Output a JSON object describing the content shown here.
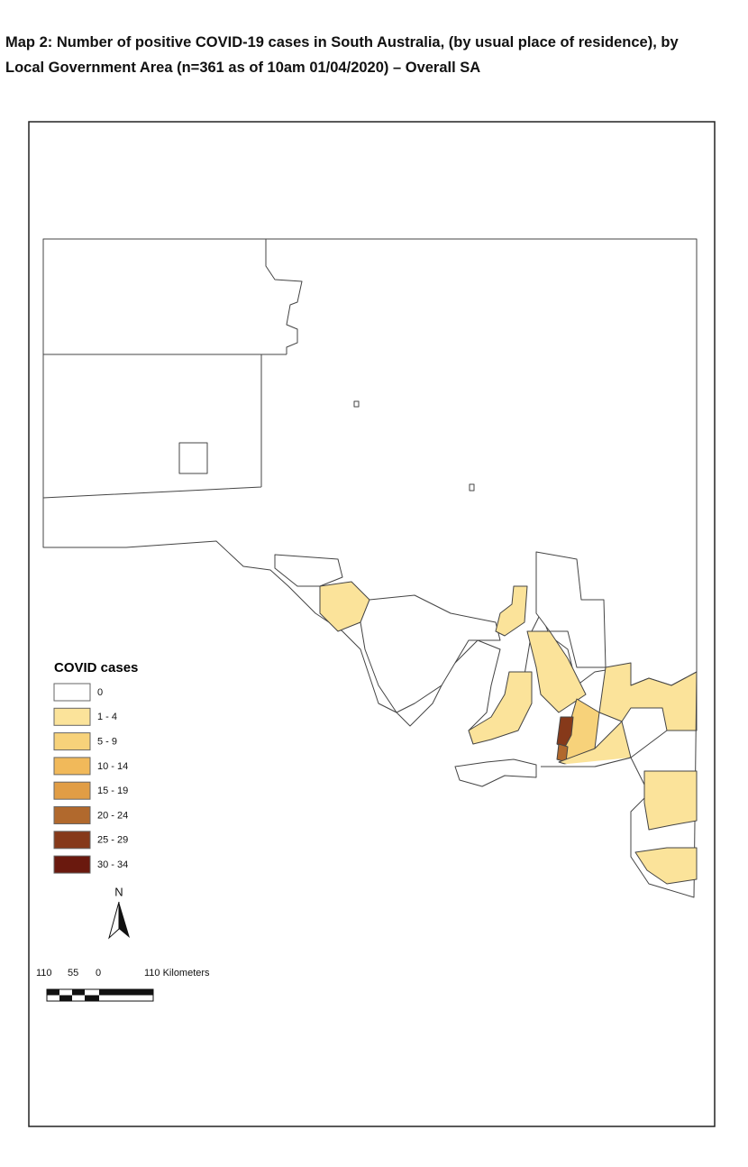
{
  "title": [
    "Map 2: Number of positive COVID-19 cases in South Australia, (by usual place of residence), by",
    "Local Government Area (n=361 as of 10am 01/04/2020) – Overall SA"
  ],
  "legend": {
    "title": "COVID cases",
    "items": [
      {
        "label": "0",
        "color": "#ffffff"
      },
      {
        "label": "1 - 4",
        "color": "#fbe39a"
      },
      {
        "label": "5 - 9",
        "color": "#f7d27a"
      },
      {
        "label": "10 - 14",
        "color": "#f1b95a"
      },
      {
        "label": "15 - 19",
        "color": "#e19d45"
      },
      {
        "label": "20 - 24",
        "color": "#b1692d"
      },
      {
        "label": "25 - 29",
        "color": "#86391a"
      },
      {
        "label": "30 - 34",
        "color": "#6a190e"
      }
    ]
  },
  "north": "N",
  "scale_bar": {
    "labels": [
      "110",
      "55",
      "0",
      "110 Kilometers"
    ]
  }
}
